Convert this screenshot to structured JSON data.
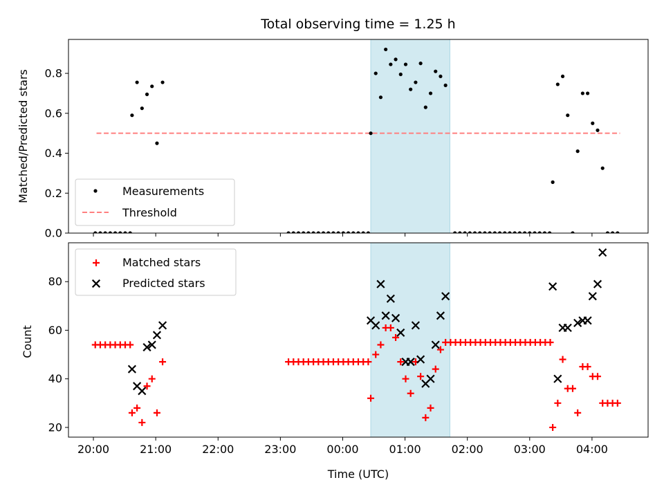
{
  "chart_data": [
    {
      "type": "scatter",
      "title": "Total observing time = 1.25 h",
      "ylabel": "Matched/Predicted stars",
      "ylim": [
        0,
        0.97
      ],
      "yticks": [
        0.0,
        0.2,
        0.4,
        0.6,
        0.8
      ],
      "ytick_labels": [
        "0.0",
        "0.2",
        "0.4",
        "0.6",
        "0.8"
      ],
      "legend_position": "lower-left",
      "highlight_window": {
        "start": 4.45,
        "end": 5.72,
        "color": "#add8e6"
      },
      "threshold": {
        "name": "Threshold",
        "value": 0.5,
        "x_range": [
          0.05,
          8.45
        ],
        "color": "#ff7f7f"
      },
      "series": [
        {
          "name": "Measurements",
          "color": "#000000",
          "marker": "dot",
          "points": [
            [
              0.03,
              0
            ],
            [
              0.11,
              0
            ],
            [
              0.19,
              0
            ],
            [
              0.27,
              0
            ],
            [
              0.35,
              0
            ],
            [
              0.43,
              0
            ],
            [
              0.51,
              0
            ],
            [
              0.59,
              0
            ],
            [
              0.62,
              0.59
            ],
            [
              0.7,
              0.755
            ],
            [
              0.78,
              0.625
            ],
            [
              0.86,
              0.695
            ],
            [
              0.94,
              0.735
            ],
            [
              1.02,
              0.45
            ],
            [
              1.11,
              0.755
            ],
            [
              3.13,
              0
            ],
            [
              3.21,
              0
            ],
            [
              3.29,
              0
            ],
            [
              3.37,
              0
            ],
            [
              3.45,
              0
            ],
            [
              3.53,
              0
            ],
            [
              3.61,
              0
            ],
            [
              3.69,
              0
            ],
            [
              3.77,
              0
            ],
            [
              3.85,
              0
            ],
            [
              3.93,
              0
            ],
            [
              4.01,
              0
            ],
            [
              4.09,
              0
            ],
            [
              4.17,
              0
            ],
            [
              4.25,
              0
            ],
            [
              4.33,
              0
            ],
            [
              4.41,
              0
            ],
            [
              4.45,
              0.5
            ],
            [
              4.53,
              0.8
            ],
            [
              4.61,
              0.68
            ],
            [
              4.69,
              0.92
            ],
            [
              4.77,
              0.845
            ],
            [
              4.85,
              0.87
            ],
            [
              4.93,
              0.795
            ],
            [
              5.01,
              0.845
            ],
            [
              5.09,
              0.72
            ],
            [
              5.17,
              0.755
            ],
            [
              5.25,
              0.85
            ],
            [
              5.33,
              0.63
            ],
            [
              5.41,
              0.7
            ],
            [
              5.49,
              0.81
            ],
            [
              5.57,
              0.785
            ],
            [
              5.65,
              0.74
            ],
            [
              5.8,
              0
            ],
            [
              5.88,
              0
            ],
            [
              5.96,
              0
            ],
            [
              6.04,
              0
            ],
            [
              6.12,
              0
            ],
            [
              6.2,
              0
            ],
            [
              6.28,
              0
            ],
            [
              6.36,
              0
            ],
            [
              6.44,
              0
            ],
            [
              6.52,
              0
            ],
            [
              6.6,
              0
            ],
            [
              6.68,
              0
            ],
            [
              6.76,
              0
            ],
            [
              6.84,
              0
            ],
            [
              6.92,
              0
            ],
            [
              7.0,
              0
            ],
            [
              7.08,
              0
            ],
            [
              7.16,
              0
            ],
            [
              7.24,
              0
            ],
            [
              7.32,
              0
            ],
            [
              7.37,
              0.255
            ],
            [
              7.45,
              0.745
            ],
            [
              7.53,
              0.785
            ],
            [
              7.61,
              0.59
            ],
            [
              7.69,
              0
            ],
            [
              7.77,
              0.41
            ],
            [
              7.85,
              0.7
            ],
            [
              7.93,
              0.7
            ],
            [
              8.01,
              0.55
            ],
            [
              8.09,
              0.515
            ],
            [
              8.17,
              0.325
            ],
            [
              8.25,
              0
            ],
            [
              8.33,
              0
            ],
            [
              8.41,
              0
            ]
          ]
        }
      ]
    },
    {
      "type": "scatter",
      "xlabel": "Time (UTC)",
      "ylabel": "Count",
      "ylim": [
        16,
        96
      ],
      "yticks": [
        20,
        40,
        60,
        80
      ],
      "ytick_labels": [
        "20",
        "40",
        "60",
        "80"
      ],
      "xlim": [
        -0.4,
        8.9
      ],
      "xticks": [
        0,
        1,
        2,
        3,
        4,
        5,
        6,
        7,
        8
      ],
      "xtick_labels": [
        "20:00",
        "21:00",
        "22:00",
        "23:00",
        "00:00",
        "01:00",
        "02:00",
        "03:00",
        "04:00"
      ],
      "legend_position": "top-left",
      "highlight_window": {
        "start": 4.45,
        "end": 5.72,
        "color": "#add8e6"
      },
      "series": [
        {
          "name": "Matched stars",
          "color": "#ff0000",
          "marker": "plus",
          "points": [
            [
              0.03,
              54
            ],
            [
              0.11,
              54
            ],
            [
              0.19,
              54
            ],
            [
              0.27,
              54
            ],
            [
              0.35,
              54
            ],
            [
              0.43,
              54
            ],
            [
              0.51,
              54
            ],
            [
              0.59,
              54
            ],
            [
              0.62,
              26
            ],
            [
              0.7,
              28
            ],
            [
              0.78,
              22
            ],
            [
              0.86,
              37
            ],
            [
              0.94,
              40
            ],
            [
              1.02,
              26
            ],
            [
              1.11,
              47
            ],
            [
              3.13,
              47
            ],
            [
              3.21,
              47
            ],
            [
              3.29,
              47
            ],
            [
              3.37,
              47
            ],
            [
              3.45,
              47
            ],
            [
              3.53,
              47
            ],
            [
              3.61,
              47
            ],
            [
              3.69,
              47
            ],
            [
              3.77,
              47
            ],
            [
              3.85,
              47
            ],
            [
              3.93,
              47
            ],
            [
              4.01,
              47
            ],
            [
              4.09,
              47
            ],
            [
              4.17,
              47
            ],
            [
              4.25,
              47
            ],
            [
              4.33,
              47
            ],
            [
              4.41,
              47
            ],
            [
              4.45,
              32
            ],
            [
              4.53,
              50
            ],
            [
              4.61,
              54
            ],
            [
              4.69,
              61
            ],
            [
              4.77,
              61
            ],
            [
              4.85,
              57
            ],
            [
              4.93,
              47
            ],
            [
              5.01,
              40
            ],
            [
              5.09,
              34
            ],
            [
              5.17,
              47
            ],
            [
              5.25,
              41
            ],
            [
              5.33,
              24
            ],
            [
              5.41,
              28
            ],
            [
              5.49,
              44
            ],
            [
              5.57,
              52
            ],
            [
              5.65,
              55
            ],
            [
              5.73,
              55
            ],
            [
              5.81,
              55
            ],
            [
              5.89,
              55
            ],
            [
              5.97,
              55
            ],
            [
              6.05,
              55
            ],
            [
              6.13,
              55
            ],
            [
              6.21,
              55
            ],
            [
              6.29,
              55
            ],
            [
              6.37,
              55
            ],
            [
              6.45,
              55
            ],
            [
              6.53,
              55
            ],
            [
              6.61,
              55
            ],
            [
              6.69,
              55
            ],
            [
              6.77,
              55
            ],
            [
              6.85,
              55
            ],
            [
              6.93,
              55
            ],
            [
              7.01,
              55
            ],
            [
              7.09,
              55
            ],
            [
              7.17,
              55
            ],
            [
              7.25,
              55
            ],
            [
              7.33,
              55
            ],
            [
              7.37,
              20
            ],
            [
              7.45,
              30
            ],
            [
              7.53,
              48
            ],
            [
              7.61,
              36
            ],
            [
              7.69,
              36
            ],
            [
              7.77,
              26
            ],
            [
              7.85,
              45
            ],
            [
              7.93,
              45
            ],
            [
              8.01,
              41
            ],
            [
              8.09,
              41
            ],
            [
              8.17,
              30
            ],
            [
              8.25,
              30
            ],
            [
              8.33,
              30
            ],
            [
              8.41,
              30
            ]
          ]
        },
        {
          "name": "Predicted stars",
          "color": "#000000",
          "marker": "x",
          "points": [
            [
              0.62,
              44
            ],
            [
              0.7,
              37
            ],
            [
              0.78,
              35
            ],
            [
              0.86,
              53
            ],
            [
              0.94,
              54
            ],
            [
              1.02,
              58
            ],
            [
              1.11,
              62
            ],
            [
              4.45,
              64
            ],
            [
              4.53,
              62
            ],
            [
              4.61,
              79
            ],
            [
              4.69,
              66
            ],
            [
              4.77,
              73
            ],
            [
              4.85,
              65
            ],
            [
              4.93,
              59
            ],
            [
              5.01,
              47
            ],
            [
              5.09,
              47
            ],
            [
              5.17,
              62
            ],
            [
              5.25,
              48
            ],
            [
              5.33,
              38
            ],
            [
              5.41,
              40
            ],
            [
              5.49,
              54
            ],
            [
              5.57,
              66
            ],
            [
              5.65,
              74
            ],
            [
              7.37,
              78
            ],
            [
              7.45,
              40
            ],
            [
              7.53,
              61
            ],
            [
              7.61,
              61
            ],
            [
              7.77,
              63
            ],
            [
              7.85,
              64
            ],
            [
              7.93,
              64
            ],
            [
              8.01,
              74
            ],
            [
              8.09,
              79
            ],
            [
              8.17,
              92
            ]
          ]
        }
      ]
    }
  ]
}
